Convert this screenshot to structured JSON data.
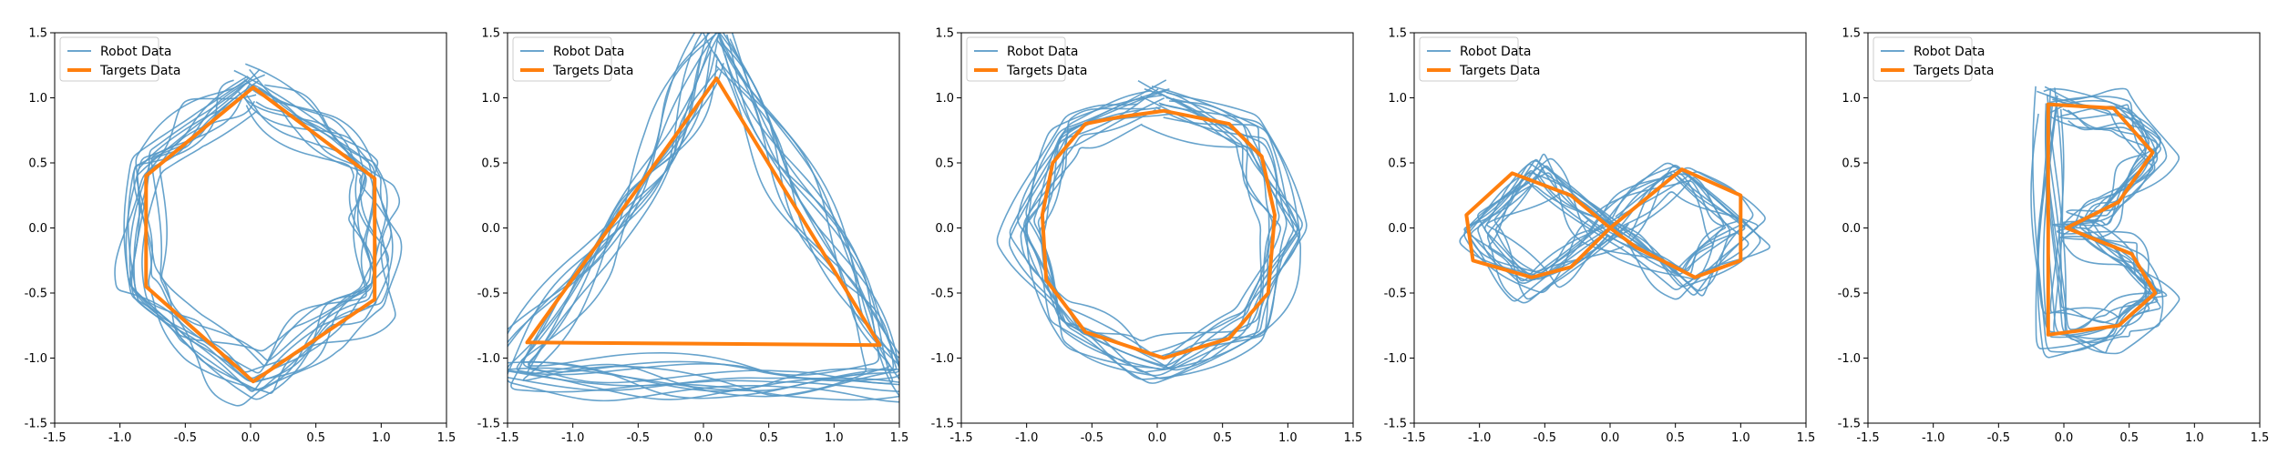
{
  "colors": {
    "robot": "#5799c7",
    "target": "#ff7f0e",
    "frame": "#000000",
    "legend_border": "#cccccc"
  },
  "chart_data": [
    {
      "type": "line",
      "shape": "hexagon",
      "xlim": [
        -1.5,
        1.5
      ],
      "ylim": [
        -1.5,
        1.5
      ],
      "xticks": [
        "-1.5",
        "-1.0",
        "-0.5",
        "0.0",
        "0.5",
        "1.0",
        "1.5"
      ],
      "yticks": [
        "-1.5",
        "-1.0",
        "-0.5",
        "0.0",
        "0.5",
        "1.0",
        "1.5"
      ],
      "grid": false,
      "legend_position": "upper-left",
      "series": [
        {
          "name": "Robot Data",
          "x": [
            0.0,
            0.5,
            0.9,
            0.95,
            0.92,
            0.5,
            0.05,
            -0.45,
            -0.82,
            -0.8,
            -0.35,
            0.0
          ],
          "y": [
            1.05,
            0.75,
            0.4,
            -0.05,
            -0.55,
            -0.8,
            -1.18,
            -0.85,
            -0.45,
            0.45,
            0.8,
            1.05
          ]
        },
        {
          "name": "Targets Data",
          "x": [
            0.02,
            0.95,
            0.95,
            0.02,
            -0.8,
            -0.8,
            0.02
          ],
          "y": [
            1.08,
            0.38,
            -0.55,
            -1.18,
            -0.45,
            0.4,
            1.08
          ]
        }
      ]
    },
    {
      "type": "line",
      "shape": "triangle",
      "xlim": [
        -1.5,
        1.5
      ],
      "ylim": [
        -1.5,
        1.5
      ],
      "xticks": [
        "-1.5",
        "-1.0",
        "-0.5",
        "0.0",
        "0.5",
        "1.0",
        "1.5"
      ],
      "yticks": [
        "-1.5",
        "-1.0",
        "-0.5",
        "0.0",
        "0.5",
        "1.0",
        "1.5"
      ],
      "grid": false,
      "legend_position": "upper-left",
      "series": [
        {
          "name": "Robot Data",
          "x": [
            0.1,
            0.6,
            1.1,
            1.5,
            0.5,
            -0.5,
            -1.5,
            -0.8,
            -0.3,
            0.1
          ],
          "y": [
            1.45,
            0.5,
            -0.4,
            -1.15,
            -1.2,
            -1.15,
            -1.1,
            -0.2,
            0.6,
            1.45
          ]
        },
        {
          "name": "Targets Data",
          "x": [
            0.1,
            1.35,
            -1.35,
            0.1
          ],
          "y": [
            1.15,
            -0.9,
            -0.88,
            1.15
          ]
        }
      ]
    },
    {
      "type": "line",
      "shape": "circle",
      "xlim": [
        -1.5,
        1.5
      ],
      "ylim": [
        -1.5,
        1.5
      ],
      "xticks": [
        "-1.5",
        "-1.0",
        "-0.5",
        "0.0",
        "0.5",
        "1.0",
        "1.5"
      ],
      "yticks": [
        "-1.5",
        "-1.0",
        "-0.5",
        "0.0",
        "0.5",
        "1.0",
        "1.5"
      ],
      "grid": false,
      "legend_position": "upper-left",
      "series": [
        {
          "name": "Robot Data",
          "x": [
            0.0,
            0.7,
            1.0,
            0.7,
            0.0,
            -0.7,
            -1.0,
            -0.7,
            0.0
          ],
          "y": [
            0.95,
            0.7,
            0.0,
            -0.75,
            -1.05,
            -0.75,
            0.0,
            0.7,
            0.95
          ]
        },
        {
          "name": "Targets Data",
          "x": [
            0.05,
            0.55,
            0.8,
            0.9,
            0.85,
            0.55,
            0.05,
            -0.55,
            -0.85,
            -0.88,
            -0.8,
            -0.55,
            -0.3,
            0.05
          ],
          "y": [
            0.9,
            0.8,
            0.55,
            0.1,
            -0.5,
            -0.85,
            -1.0,
            -0.8,
            -0.4,
            0.1,
            0.5,
            0.8,
            0.85,
            0.9
          ]
        }
      ]
    },
    {
      "type": "line",
      "shape": "infinity",
      "xlim": [
        -1.5,
        1.5
      ],
      "ylim": [
        -1.5,
        1.5
      ],
      "xticks": [
        "-1.5",
        "-1.0",
        "-0.5",
        "0.0",
        "0.5",
        "1.0",
        "1.5"
      ],
      "yticks": [
        "-1.5",
        "-1.0",
        "-0.5",
        "0.0",
        "0.5",
        "1.0",
        "1.5"
      ],
      "grid": false,
      "legend_position": "upper-left",
      "series": [
        {
          "name": "Robot Data",
          "x": [
            0.0,
            0.55,
            1.05,
            0.6,
            0.0,
            -0.55,
            -1.05,
            -0.6,
            0.0
          ],
          "y": [
            0.0,
            0.45,
            0.0,
            -0.45,
            0.0,
            0.45,
            0.0,
            -0.45,
            0.0
          ]
        },
        {
          "name": "Targets Data",
          "x": [
            0.0,
            0.55,
            1.0,
            1.0,
            0.65,
            0.2,
            0.0,
            -0.3,
            -0.75,
            -1.1,
            -1.05,
            -0.6,
            -0.3,
            0.0
          ],
          "y": [
            0.0,
            0.45,
            0.25,
            -0.25,
            -0.38,
            -0.15,
            0.0,
            0.25,
            0.42,
            0.1,
            -0.25,
            -0.38,
            -0.3,
            0.0
          ]
        }
      ]
    },
    {
      "type": "line",
      "shape": "letter-b",
      "xlim": [
        -1.5,
        1.5
      ],
      "ylim": [
        -1.5,
        1.5
      ],
      "xticks": [
        "-1.5",
        "-1.0",
        "-0.5",
        "0.0",
        "0.5",
        "1.0",
        "1.5"
      ],
      "yticks": [
        "-1.5",
        "-1.0",
        "-0.5",
        "0.0",
        "0.5",
        "1.0",
        "1.5"
      ],
      "grid": false,
      "legend_position": "upper-left",
      "series": [
        {
          "name": "Robot Data",
          "x": [
            -0.1,
            0.45,
            0.7,
            0.35,
            0.0,
            0.5,
            0.7,
            0.4,
            -0.1,
            -0.1
          ],
          "y": [
            0.95,
            0.9,
            0.55,
            0.15,
            0.0,
            -0.2,
            -0.55,
            -0.8,
            -0.8,
            0.95
          ]
        },
        {
          "name": "Targets Data",
          "x": [
            -0.12,
            0.38,
            0.68,
            0.42,
            0.02,
            0.52,
            0.7,
            0.42,
            -0.12,
            -0.12
          ],
          "y": [
            0.95,
            0.92,
            0.58,
            0.2,
            0.0,
            -0.2,
            -0.5,
            -0.75,
            -0.82,
            0.95
          ]
        }
      ]
    }
  ]
}
